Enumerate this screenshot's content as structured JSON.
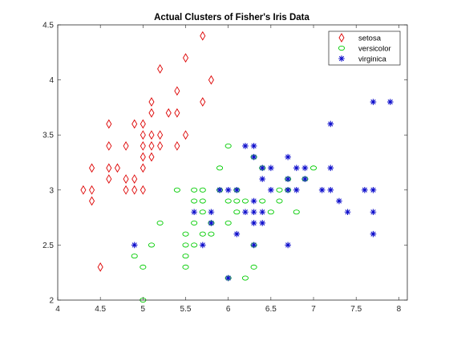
{
  "chart_data": {
    "type": "scatter",
    "title": "Actual Clusters of Fisher's Iris Data",
    "xlabel": "",
    "ylabel": "",
    "xlim": [
      4,
      8.1
    ],
    "ylim": [
      2,
      4.5
    ],
    "xticks": [
      "4",
      "4.5",
      "5",
      "5.5",
      "6",
      "6.5",
      "7",
      "7.5",
      "8"
    ],
    "yticks": [
      "2",
      "2.5",
      "3",
      "3.5",
      "4",
      "4.5"
    ],
    "grid": false,
    "legend_position": "top-right",
    "series": [
      {
        "name": "setosa",
        "color": "#dd0000",
        "marker": "diamond",
        "points": [
          [
            4.3,
            3.0
          ],
          [
            4.4,
            2.9
          ],
          [
            4.4,
            3.0
          ],
          [
            4.4,
            3.2
          ],
          [
            4.5,
            2.3
          ],
          [
            4.6,
            3.1
          ],
          [
            4.6,
            3.2
          ],
          [
            4.6,
            3.4
          ],
          [
            4.6,
            3.6
          ],
          [
            4.7,
            3.2
          ],
          [
            4.8,
            3.0
          ],
          [
            4.8,
            3.1
          ],
          [
            4.8,
            3.4
          ],
          [
            4.9,
            3.0
          ],
          [
            4.9,
            3.1
          ],
          [
            4.9,
            3.6
          ],
          [
            5.0,
            3.0
          ],
          [
            5.0,
            3.2
          ],
          [
            5.0,
            3.3
          ],
          [
            5.0,
            3.4
          ],
          [
            5.0,
            3.5
          ],
          [
            5.0,
            3.6
          ],
          [
            5.1,
            3.3
          ],
          [
            5.1,
            3.4
          ],
          [
            5.1,
            3.5
          ],
          [
            5.1,
            3.7
          ],
          [
            5.1,
            3.8
          ],
          [
            5.2,
            3.4
          ],
          [
            5.2,
            3.5
          ],
          [
            5.2,
            4.1
          ],
          [
            5.3,
            3.7
          ],
          [
            5.4,
            3.4
          ],
          [
            5.4,
            3.7
          ],
          [
            5.4,
            3.9
          ],
          [
            5.5,
            3.5
          ],
          [
            5.5,
            4.2
          ],
          [
            5.7,
            3.8
          ],
          [
            5.7,
            4.4
          ],
          [
            5.8,
            4.0
          ]
        ]
      },
      {
        "name": "versicolor",
        "color": "#00cc00",
        "marker": "circle",
        "points": [
          [
            4.9,
            2.4
          ],
          [
            5.0,
            2.0
          ],
          [
            5.0,
            2.3
          ],
          [
            5.1,
            2.5
          ],
          [
            5.2,
            2.7
          ],
          [
            5.4,
            3.0
          ],
          [
            5.5,
            2.3
          ],
          [
            5.5,
            2.4
          ],
          [
            5.5,
            2.5
          ],
          [
            5.5,
            2.6
          ],
          [
            5.6,
            2.5
          ],
          [
            5.6,
            2.7
          ],
          [
            5.6,
            2.9
          ],
          [
            5.6,
            3.0
          ],
          [
            5.7,
            2.6
          ],
          [
            5.7,
            2.8
          ],
          [
            5.7,
            2.9
          ],
          [
            5.7,
            3.0
          ],
          [
            5.8,
            2.6
          ],
          [
            5.8,
            2.7
          ],
          [
            5.9,
            3.0
          ],
          [
            5.9,
            3.2
          ],
          [
            6.0,
            2.2
          ],
          [
            6.0,
            2.7
          ],
          [
            6.0,
            2.9
          ],
          [
            6.0,
            3.4
          ],
          [
            6.1,
            2.8
          ],
          [
            6.1,
            2.9
          ],
          [
            6.1,
            3.0
          ],
          [
            6.2,
            2.2
          ],
          [
            6.2,
            2.9
          ],
          [
            6.3,
            2.3
          ],
          [
            6.3,
            2.5
          ],
          [
            6.3,
            3.3
          ],
          [
            6.4,
            2.9
          ],
          [
            6.4,
            3.2
          ],
          [
            6.5,
            2.8
          ],
          [
            6.6,
            2.9
          ],
          [
            6.6,
            3.0
          ],
          [
            6.7,
            3.0
          ],
          [
            6.7,
            3.1
          ],
          [
            6.8,
            2.8
          ],
          [
            6.9,
            3.1
          ],
          [
            7.0,
            3.2
          ]
        ]
      },
      {
        "name": "virginica",
        "color": "#1010cc",
        "marker": "star",
        "points": [
          [
            4.9,
            2.5
          ],
          [
            5.6,
            2.8
          ],
          [
            5.7,
            2.5
          ],
          [
            5.8,
            2.7
          ],
          [
            5.8,
            2.8
          ],
          [
            5.9,
            3.0
          ],
          [
            6.0,
            2.2
          ],
          [
            6.0,
            3.0
          ],
          [
            6.1,
            2.6
          ],
          [
            6.1,
            3.0
          ],
          [
            6.2,
            2.8
          ],
          [
            6.2,
            3.4
          ],
          [
            6.3,
            2.5
          ],
          [
            6.3,
            2.7
          ],
          [
            6.3,
            2.8
          ],
          [
            6.3,
            2.9
          ],
          [
            6.3,
            3.3
          ],
          [
            6.3,
            3.4
          ],
          [
            6.4,
            2.7
          ],
          [
            6.4,
            2.8
          ],
          [
            6.4,
            3.1
          ],
          [
            6.4,
            3.2
          ],
          [
            6.5,
            3.0
          ],
          [
            6.5,
            3.2
          ],
          [
            6.7,
            2.5
          ],
          [
            6.7,
            3.0
          ],
          [
            6.7,
            3.1
          ],
          [
            6.7,
            3.3
          ],
          [
            6.8,
            3.0
          ],
          [
            6.8,
            3.2
          ],
          [
            6.9,
            3.1
          ],
          [
            6.9,
            3.2
          ],
          [
            7.1,
            3.0
          ],
          [
            7.2,
            3.0
          ],
          [
            7.2,
            3.2
          ],
          [
            7.2,
            3.6
          ],
          [
            7.3,
            2.9
          ],
          [
            7.4,
            2.8
          ],
          [
            7.6,
            3.0
          ],
          [
            7.7,
            2.6
          ],
          [
            7.7,
            2.8
          ],
          [
            7.7,
            3.0
          ],
          [
            7.7,
            3.8
          ],
          [
            7.9,
            3.8
          ]
        ]
      }
    ]
  }
}
